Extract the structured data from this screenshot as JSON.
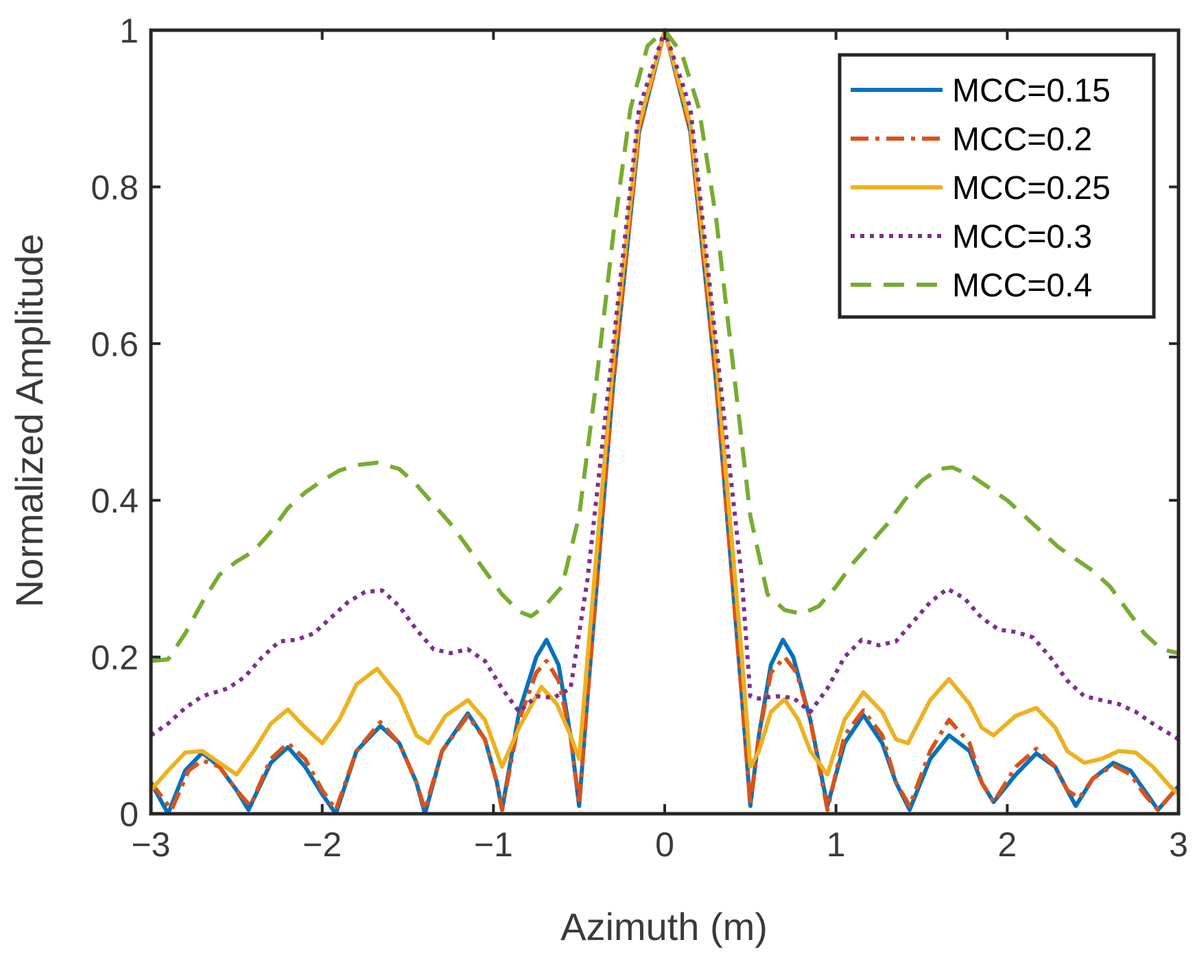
{
  "chart_data": {
    "type": "line",
    "title": "",
    "xlabel": "Azimuth (m)",
    "ylabel": "Normalized Amplitude",
    "xlim": [
      -3,
      3
    ],
    "ylim": [
      0,
      1
    ],
    "xticks": [
      -3,
      -2,
      -1,
      0,
      1,
      2,
      3
    ],
    "xtick_labels": [
      "−3",
      "−2",
      "−1",
      "0",
      "1",
      "2",
      "3"
    ],
    "yticks": [
      0,
      0.2,
      0.4,
      0.6,
      0.8,
      1
    ],
    "ytick_labels": [
      "0",
      "0.2",
      "0.4",
      "0.6",
      "0.8",
      "1"
    ],
    "grid": false,
    "legend_position": "top-right",
    "series": [
      {
        "name": "MCC=0.15",
        "color": "#0072BD",
        "style": "solid",
        "points": [
          [
            -3.0,
            0.04
          ],
          [
            -2.9,
            0.0
          ],
          [
            -2.8,
            0.055
          ],
          [
            -2.7,
            0.078
          ],
          [
            -2.6,
            0.06
          ],
          [
            -2.5,
            0.03
          ],
          [
            -2.43,
            0.005
          ],
          [
            -2.3,
            0.065
          ],
          [
            -2.2,
            0.085
          ],
          [
            -2.1,
            0.06
          ],
          [
            -2.0,
            0.025
          ],
          [
            -1.92,
            0.0
          ],
          [
            -1.8,
            0.08
          ],
          [
            -1.66,
            0.112
          ],
          [
            -1.55,
            0.09
          ],
          [
            -1.45,
            0.04
          ],
          [
            -1.4,
            0.0
          ],
          [
            -1.3,
            0.08
          ],
          [
            -1.15,
            0.128
          ],
          [
            -1.05,
            0.095
          ],
          [
            -0.98,
            0.04
          ],
          [
            -0.95,
            0.005
          ],
          [
            -0.85,
            0.13
          ],
          [
            -0.75,
            0.2
          ],
          [
            -0.69,
            0.222
          ],
          [
            -0.62,
            0.19
          ],
          [
            -0.55,
            0.1
          ],
          [
            -0.5,
            0.01
          ],
          [
            -0.45,
            0.15
          ],
          [
            -0.3,
            0.55
          ],
          [
            -0.15,
            0.87
          ],
          [
            0.0,
            1.0
          ],
          [
            0.15,
            0.87
          ],
          [
            0.3,
            0.55
          ],
          [
            0.45,
            0.15
          ],
          [
            0.5,
            0.01
          ],
          [
            0.55,
            0.1
          ],
          [
            0.62,
            0.19
          ],
          [
            0.69,
            0.222
          ],
          [
            0.75,
            0.2
          ],
          [
            0.85,
            0.12
          ],
          [
            0.95,
            0.01
          ],
          [
            1.05,
            0.09
          ],
          [
            1.16,
            0.126
          ],
          [
            1.27,
            0.09
          ],
          [
            1.35,
            0.04
          ],
          [
            1.43,
            0.005
          ],
          [
            1.55,
            0.07
          ],
          [
            1.66,
            0.1
          ],
          [
            1.78,
            0.08
          ],
          [
            1.85,
            0.04
          ],
          [
            1.92,
            0.015
          ],
          [
            2.05,
            0.05
          ],
          [
            2.17,
            0.077
          ],
          [
            2.28,
            0.06
          ],
          [
            2.35,
            0.03
          ],
          [
            2.4,
            0.01
          ],
          [
            2.5,
            0.045
          ],
          [
            2.62,
            0.065
          ],
          [
            2.72,
            0.055
          ],
          [
            2.8,
            0.03
          ],
          [
            2.88,
            0.005
          ],
          [
            3.0,
            0.035
          ]
        ]
      },
      {
        "name": "MCC=0.2",
        "color": "#D95319",
        "style": "dashdot",
        "points": [
          [
            -3.0,
            0.04
          ],
          [
            -2.88,
            0.005
          ],
          [
            -2.78,
            0.055
          ],
          [
            -2.7,
            0.068
          ],
          [
            -2.6,
            0.06
          ],
          [
            -2.5,
            0.03
          ],
          [
            -2.42,
            0.01
          ],
          [
            -2.3,
            0.07
          ],
          [
            -2.2,
            0.09
          ],
          [
            -2.1,
            0.07
          ],
          [
            -2.0,
            0.03
          ],
          [
            -1.92,
            0.005
          ],
          [
            -1.8,
            0.08
          ],
          [
            -1.66,
            0.117
          ],
          [
            -1.55,
            0.09
          ],
          [
            -1.45,
            0.04
          ],
          [
            -1.4,
            0.005
          ],
          [
            -1.3,
            0.08
          ],
          [
            -1.15,
            0.125
          ],
          [
            -1.05,
            0.095
          ],
          [
            -0.98,
            0.04
          ],
          [
            -0.95,
            0.005
          ],
          [
            -0.85,
            0.12
          ],
          [
            -0.75,
            0.18
          ],
          [
            -0.69,
            0.195
          ],
          [
            -0.62,
            0.17
          ],
          [
            -0.55,
            0.1
          ],
          [
            -0.5,
            0.012
          ],
          [
            -0.45,
            0.15
          ],
          [
            -0.3,
            0.55
          ],
          [
            -0.15,
            0.87
          ],
          [
            0.0,
            1.0
          ],
          [
            0.15,
            0.87
          ],
          [
            0.3,
            0.55
          ],
          [
            0.45,
            0.15
          ],
          [
            0.5,
            0.012
          ],
          [
            0.55,
            0.1
          ],
          [
            0.62,
            0.18
          ],
          [
            0.7,
            0.2
          ],
          [
            0.77,
            0.18
          ],
          [
            0.85,
            0.12
          ],
          [
            0.95,
            0.005
          ],
          [
            1.05,
            0.1
          ],
          [
            1.16,
            0.132
          ],
          [
            1.27,
            0.1
          ],
          [
            1.35,
            0.04
          ],
          [
            1.43,
            0.01
          ],
          [
            1.55,
            0.08
          ],
          [
            1.66,
            0.12
          ],
          [
            1.78,
            0.09
          ],
          [
            1.85,
            0.04
          ],
          [
            1.92,
            0.015
          ],
          [
            2.05,
            0.06
          ],
          [
            2.17,
            0.083
          ],
          [
            2.28,
            0.06
          ],
          [
            2.35,
            0.03
          ],
          [
            2.42,
            0.02
          ],
          [
            2.5,
            0.045
          ],
          [
            2.62,
            0.062
          ],
          [
            2.72,
            0.05
          ],
          [
            2.8,
            0.025
          ],
          [
            2.88,
            0.005
          ],
          [
            3.0,
            0.035
          ]
        ]
      },
      {
        "name": "MCC=0.25",
        "color": "#EDB120",
        "style": "solid",
        "points": [
          [
            -3.0,
            0.03
          ],
          [
            -2.9,
            0.055
          ],
          [
            -2.8,
            0.078
          ],
          [
            -2.7,
            0.08
          ],
          [
            -2.6,
            0.065
          ],
          [
            -2.5,
            0.05
          ],
          [
            -2.4,
            0.08
          ],
          [
            -2.3,
            0.115
          ],
          [
            -2.2,
            0.133
          ],
          [
            -2.1,
            0.11
          ],
          [
            -2.0,
            0.09
          ],
          [
            -1.9,
            0.12
          ],
          [
            -1.8,
            0.165
          ],
          [
            -1.68,
            0.185
          ],
          [
            -1.55,
            0.15
          ],
          [
            -1.45,
            0.1
          ],
          [
            -1.38,
            0.09
          ],
          [
            -1.28,
            0.125
          ],
          [
            -1.15,
            0.145
          ],
          [
            -1.05,
            0.12
          ],
          [
            -0.95,
            0.06
          ],
          [
            -0.85,
            0.11
          ],
          [
            -0.72,
            0.162
          ],
          [
            -0.63,
            0.14
          ],
          [
            -0.55,
            0.1
          ],
          [
            -0.5,
            0.07
          ],
          [
            -0.45,
            0.2
          ],
          [
            -0.3,
            0.58
          ],
          [
            -0.15,
            0.88
          ],
          [
            0.0,
            1.0
          ],
          [
            0.15,
            0.88
          ],
          [
            0.3,
            0.58
          ],
          [
            0.45,
            0.2
          ],
          [
            0.5,
            0.06
          ],
          [
            0.55,
            0.08
          ],
          [
            0.62,
            0.13
          ],
          [
            0.7,
            0.146
          ],
          [
            0.78,
            0.12
          ],
          [
            0.85,
            0.08
          ],
          [
            0.95,
            0.05
          ],
          [
            1.05,
            0.12
          ],
          [
            1.16,
            0.155
          ],
          [
            1.27,
            0.13
          ],
          [
            1.35,
            0.095
          ],
          [
            1.42,
            0.09
          ],
          [
            1.55,
            0.145
          ],
          [
            1.66,
            0.172
          ],
          [
            1.78,
            0.14
          ],
          [
            1.85,
            0.11
          ],
          [
            1.92,
            0.1
          ],
          [
            2.05,
            0.125
          ],
          [
            2.17,
            0.135
          ],
          [
            2.28,
            0.11
          ],
          [
            2.35,
            0.08
          ],
          [
            2.45,
            0.065
          ],
          [
            2.55,
            0.07
          ],
          [
            2.65,
            0.08
          ],
          [
            2.75,
            0.078
          ],
          [
            2.85,
            0.06
          ],
          [
            2.95,
            0.035
          ],
          [
            3.0,
            0.025
          ]
        ]
      },
      {
        "name": "MCC=0.3",
        "color": "#7E2F8E",
        "style": "dotted",
        "points": [
          [
            -3.0,
            0.1
          ],
          [
            -2.9,
            0.115
          ],
          [
            -2.8,
            0.135
          ],
          [
            -2.7,
            0.15
          ],
          [
            -2.55,
            0.16
          ],
          [
            -2.45,
            0.175
          ],
          [
            -2.35,
            0.2
          ],
          [
            -2.25,
            0.22
          ],
          [
            -2.15,
            0.222
          ],
          [
            -2.05,
            0.23
          ],
          [
            -1.95,
            0.25
          ],
          [
            -1.85,
            0.27
          ],
          [
            -1.75,
            0.283
          ],
          [
            -1.65,
            0.285
          ],
          [
            -1.55,
            0.265
          ],
          [
            -1.45,
            0.235
          ],
          [
            -1.35,
            0.21
          ],
          [
            -1.25,
            0.205
          ],
          [
            -1.15,
            0.21
          ],
          [
            -1.05,
            0.195
          ],
          [
            -0.95,
            0.16
          ],
          [
            -0.85,
            0.13
          ],
          [
            -0.8,
            0.14
          ],
          [
            -0.75,
            0.15
          ],
          [
            -0.65,
            0.148
          ],
          [
            -0.55,
            0.16
          ],
          [
            -0.45,
            0.3
          ],
          [
            -0.3,
            0.6
          ],
          [
            -0.15,
            0.9
          ],
          [
            0.0,
            1.0
          ],
          [
            0.15,
            0.9
          ],
          [
            0.3,
            0.6
          ],
          [
            0.45,
            0.3
          ],
          [
            0.5,
            0.15
          ],
          [
            0.55,
            0.147
          ],
          [
            0.65,
            0.15
          ],
          [
            0.75,
            0.148
          ],
          [
            0.85,
            0.13
          ],
          [
            0.95,
            0.16
          ],
          [
            1.05,
            0.2
          ],
          [
            1.15,
            0.222
          ],
          [
            1.25,
            0.215
          ],
          [
            1.35,
            0.22
          ],
          [
            1.45,
            0.245
          ],
          [
            1.55,
            0.27
          ],
          [
            1.65,
            0.287
          ],
          [
            1.75,
            0.275
          ],
          [
            1.85,
            0.25
          ],
          [
            1.95,
            0.235
          ],
          [
            2.05,
            0.232
          ],
          [
            2.15,
            0.225
          ],
          [
            2.25,
            0.2
          ],
          [
            2.35,
            0.17
          ],
          [
            2.45,
            0.15
          ],
          [
            2.55,
            0.145
          ],
          [
            2.65,
            0.14
          ],
          [
            2.75,
            0.13
          ],
          [
            2.85,
            0.115
          ],
          [
            3.0,
            0.095
          ]
        ]
      },
      {
        "name": "MCC=0.4",
        "color": "#77AC30",
        "style": "dashed",
        "points": [
          [
            -3.0,
            0.195
          ],
          [
            -2.9,
            0.197
          ],
          [
            -2.8,
            0.23
          ],
          [
            -2.7,
            0.27
          ],
          [
            -2.6,
            0.305
          ],
          [
            -2.5,
            0.322
          ],
          [
            -2.4,
            0.335
          ],
          [
            -2.3,
            0.36
          ],
          [
            -2.2,
            0.39
          ],
          [
            -2.1,
            0.41
          ],
          [
            -2.0,
            0.425
          ],
          [
            -1.9,
            0.438
          ],
          [
            -1.8,
            0.445
          ],
          [
            -1.68,
            0.448
          ],
          [
            -1.55,
            0.44
          ],
          [
            -1.45,
            0.42
          ],
          [
            -1.35,
            0.395
          ],
          [
            -1.25,
            0.37
          ],
          [
            -1.15,
            0.34
          ],
          [
            -1.05,
            0.31
          ],
          [
            -0.95,
            0.28
          ],
          [
            -0.85,
            0.258
          ],
          [
            -0.78,
            0.252
          ],
          [
            -0.7,
            0.265
          ],
          [
            -0.6,
            0.29
          ],
          [
            -0.5,
            0.38
          ],
          [
            -0.4,
            0.55
          ],
          [
            -0.3,
            0.74
          ],
          [
            -0.2,
            0.9
          ],
          [
            -0.1,
            0.98
          ],
          [
            0.0,
            1.0
          ],
          [
            0.1,
            0.97
          ],
          [
            0.2,
            0.9
          ],
          [
            0.3,
            0.76
          ],
          [
            0.4,
            0.57
          ],
          [
            0.5,
            0.38
          ],
          [
            0.6,
            0.28
          ],
          [
            0.7,
            0.26
          ],
          [
            0.8,
            0.255
          ],
          [
            0.9,
            0.265
          ],
          [
            1.0,
            0.29
          ],
          [
            1.1,
            0.32
          ],
          [
            1.2,
            0.345
          ],
          [
            1.3,
            0.37
          ],
          [
            1.4,
            0.4
          ],
          [
            1.5,
            0.425
          ],
          [
            1.6,
            0.44
          ],
          [
            1.68,
            0.442
          ],
          [
            1.8,
            0.43
          ],
          [
            1.9,
            0.415
          ],
          [
            2.0,
            0.4
          ],
          [
            2.1,
            0.38
          ],
          [
            2.2,
            0.36
          ],
          [
            2.3,
            0.34
          ],
          [
            2.4,
            0.325
          ],
          [
            2.5,
            0.31
          ],
          [
            2.6,
            0.29
          ],
          [
            2.7,
            0.26
          ],
          [
            2.8,
            0.23
          ],
          [
            2.9,
            0.21
          ],
          [
            3.0,
            0.205
          ]
        ]
      }
    ]
  }
}
